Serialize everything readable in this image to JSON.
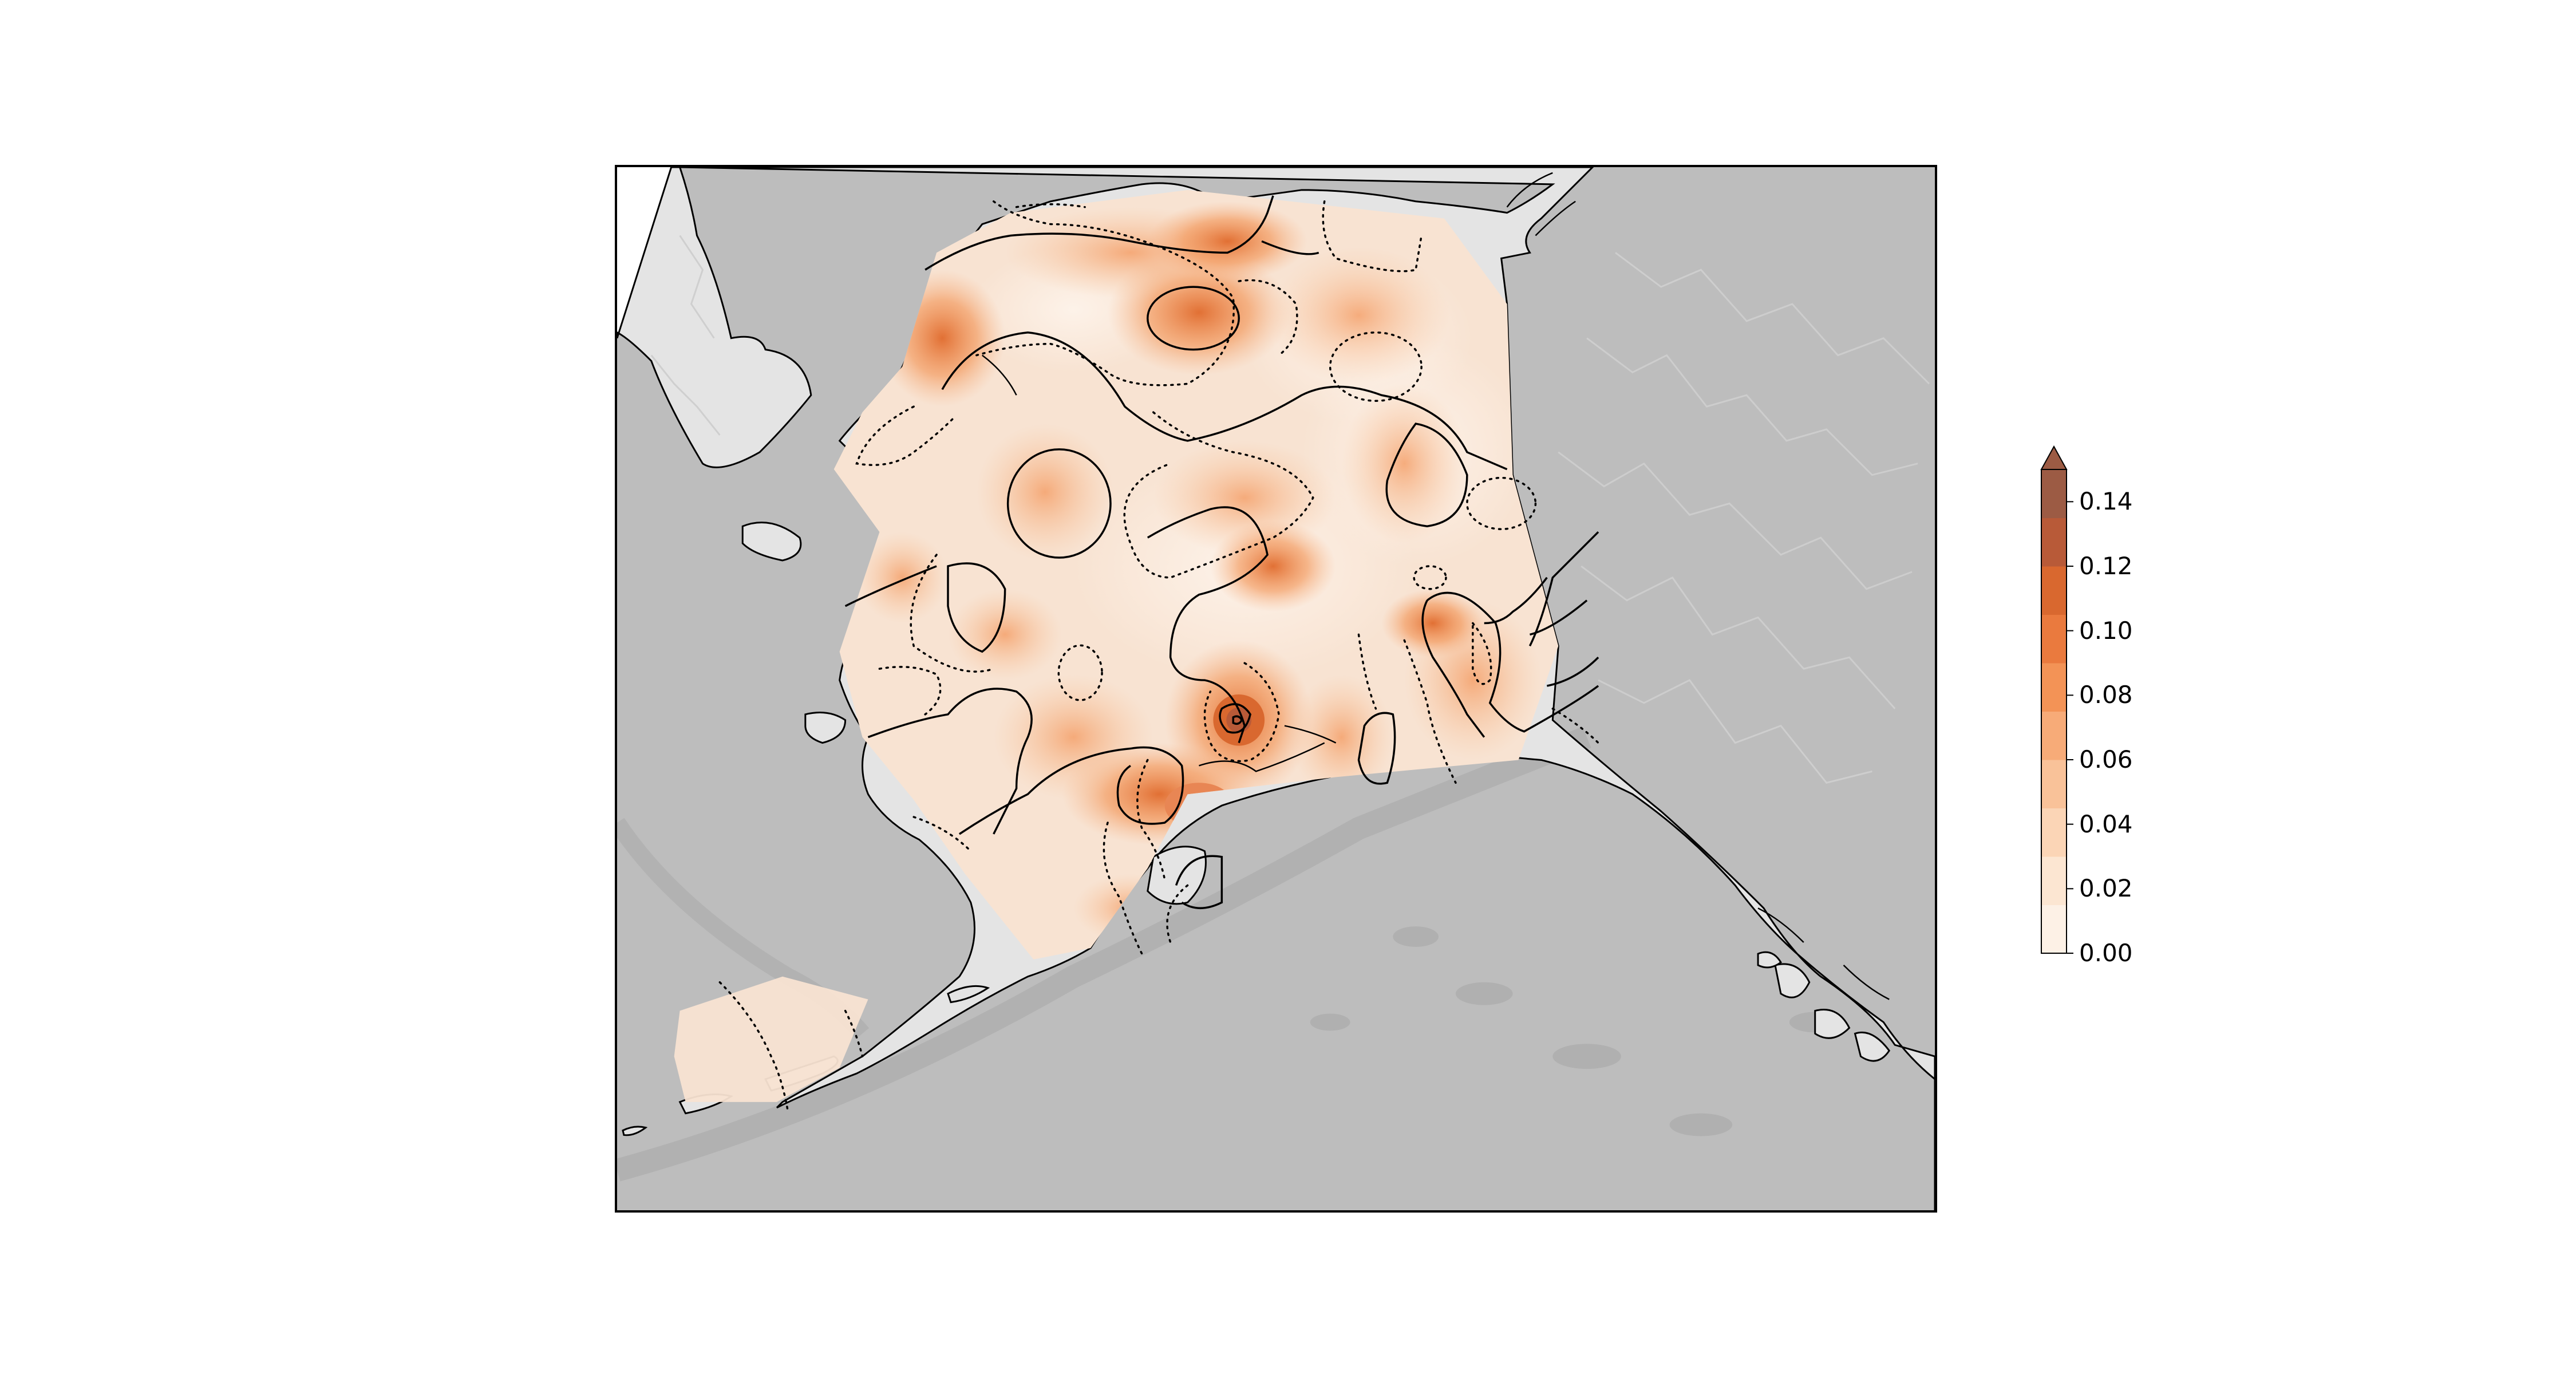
{
  "colorbar": {
    "ticks": [
      "0.00",
      "0.02",
      "0.04",
      "0.06",
      "0.08",
      "0.10",
      "0.12",
      "0.14"
    ],
    "values": [
      0,
      0.02,
      0.04,
      0.06,
      0.08,
      0.1,
      0.12,
      0.14
    ],
    "vmin": 0,
    "vmax": 0.15,
    "extend": "max",
    "colors": [
      "#fdf1e6",
      "#fce6d2",
      "#fbd5b6",
      "#f9c299",
      "#f7ab78",
      "#f39356",
      "#ea7a3e",
      "#d9682f",
      "#b85a38",
      "#9c5b44"
    ]
  },
  "map": {
    "ocean_color": "#bdbdbd",
    "land_color": "#e4e4e4",
    "field_base_color": "#f8e3d2",
    "coastline_color": "#000000"
  }
}
